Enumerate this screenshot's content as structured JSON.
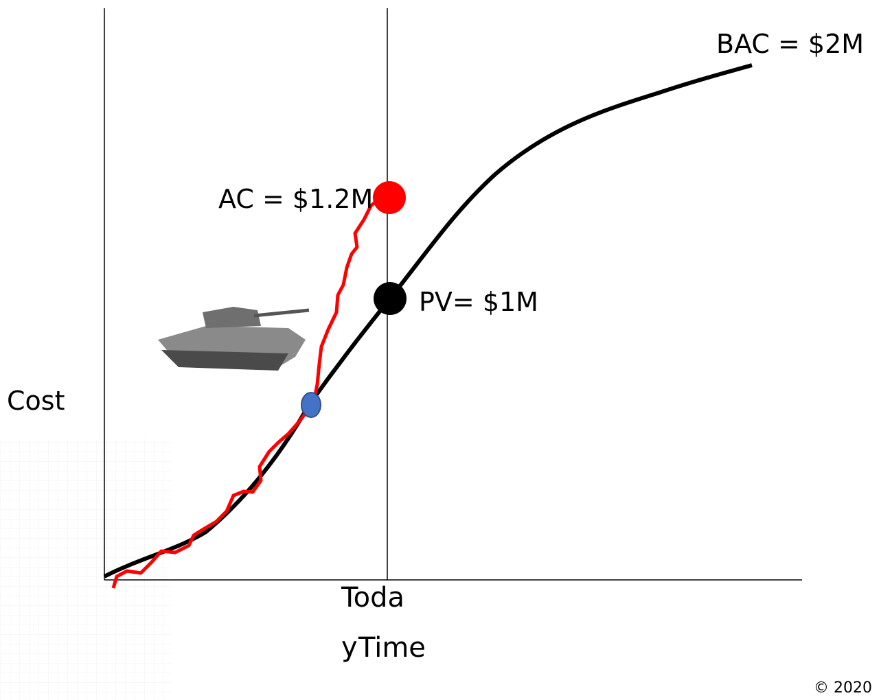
{
  "labels": {
    "bac": "BAC = $2M",
    "ac": "AC = $1.2M",
    "pv": "PV= $1M",
    "cost": "Cost",
    "today": "Today",
    "time": "Time",
    "copyright": "© 2020"
  }
}
